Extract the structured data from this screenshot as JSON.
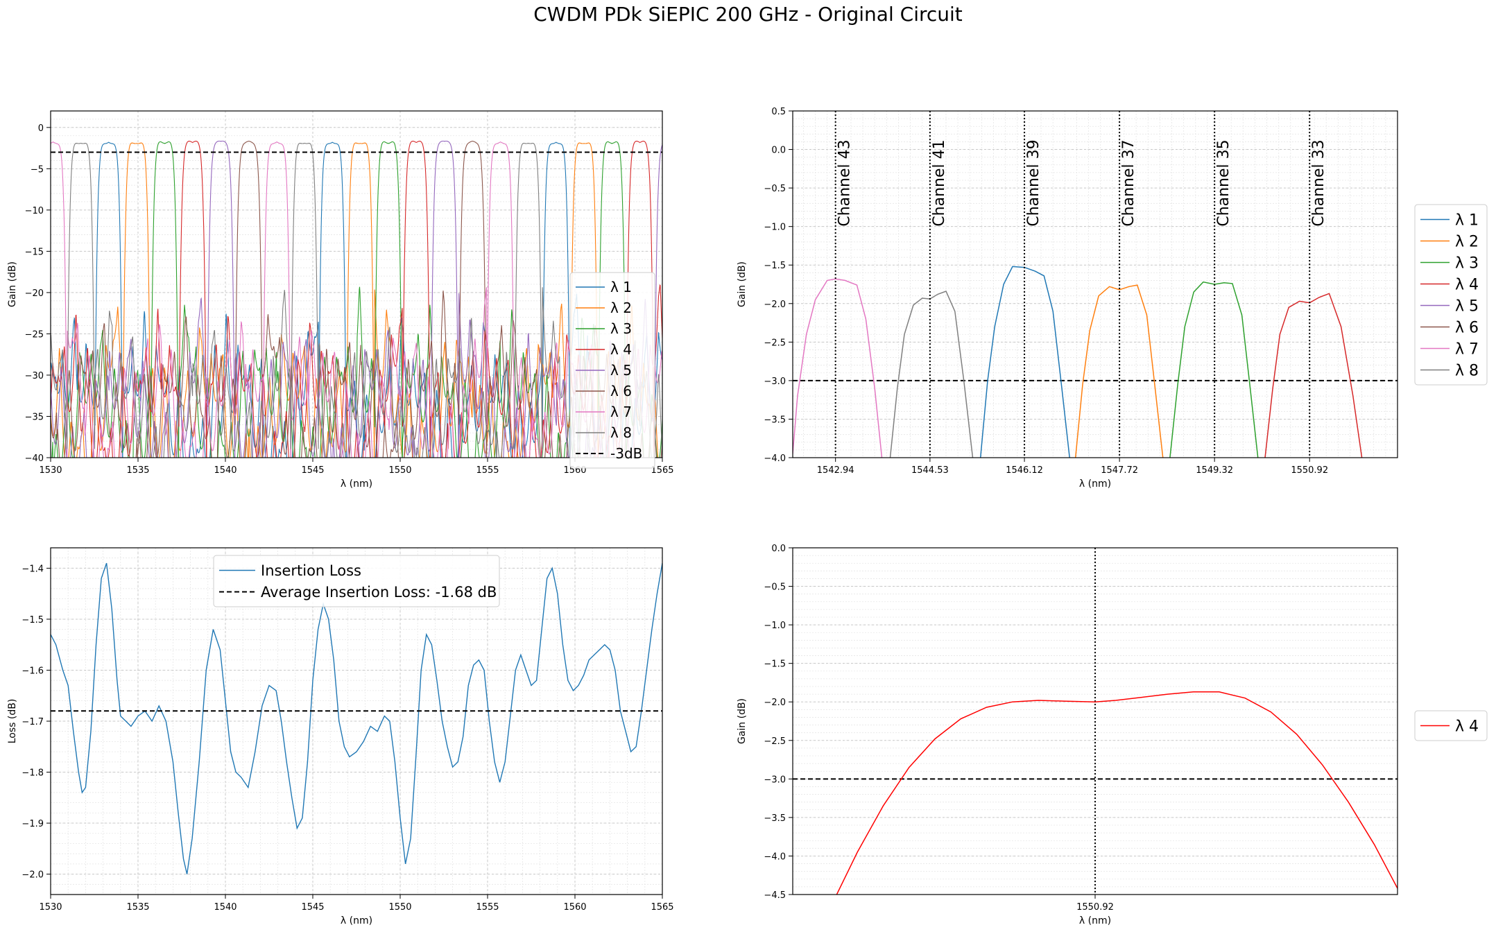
{
  "figure": {
    "title": "CWDM PDk SiEPIC 200 GHz - Original Circuit"
  },
  "colors": {
    "lam1": "#1f77b4",
    "lam2": "#ff7f0e",
    "lam3": "#2ca02c",
    "lam4": "#d62728",
    "lam5": "#9467bd",
    "lam6": "#8c564b",
    "lam7": "#e377c2",
    "lam8": "#7f7f7f",
    "lam4_zoom": "#ff0000"
  },
  "chart_data": [
    {
      "id": "spectrum",
      "type": "line",
      "xlabel": "λ (nm)",
      "ylabel": "Gain (dB)",
      "xlim": [
        1530,
        1565
      ],
      "ylim": [
        -40,
        2
      ],
      "xticks": [
        1530,
        1535,
        1540,
        1545,
        1550,
        1555,
        1560,
        1565
      ],
      "yticks": [
        0,
        -5,
        -10,
        -15,
        -20,
        -25,
        -30,
        -35,
        -40
      ],
      "grid": true,
      "legend_position": "lower-right",
      "reference_line": {
        "y": -3,
        "label": "-3dB"
      },
      "passband": {
        "peak": -1.8,
        "halfwidth_nm": 0.8,
        "fwhm_region": 0.6
      },
      "channel_period_nm": 1.6,
      "series": [
        {
          "name": "λ 1",
          "color_key": "lam1",
          "first_center": 1546.12
        },
        {
          "name": "λ 2",
          "color_key": "lam2",
          "first_center": 1547.72
        },
        {
          "name": "λ 3",
          "color_key": "lam3",
          "first_center": 1549.32
        },
        {
          "name": "λ 4",
          "color_key": "lam4",
          "first_center": 1550.92
        },
        {
          "name": "λ 5",
          "color_key": "lam5",
          "first_center": 1539.74
        },
        {
          "name": "λ 6",
          "color_key": "lam6",
          "first_center": 1541.34
        },
        {
          "name": "λ 7",
          "color_key": "lam7",
          "first_center": 1542.94
        },
        {
          "name": "λ 8",
          "color_key": "lam8",
          "first_center": 1544.53
        }
      ]
    },
    {
      "id": "channels",
      "type": "line",
      "xlabel": "λ (nm)",
      "ylabel": "Gain (dB)",
      "xlim": [
        1542.22,
        1552.4
      ],
      "ylim": [
        -4.0,
        0.5
      ],
      "xticks": [
        1542.94,
        1544.53,
        1546.12,
        1547.72,
        1549.32,
        1550.92
      ],
      "xticklabels": [
        "1542.94",
        "1544.53",
        "1546.12",
        "1547.72",
        "1549.32",
        "1550.92"
      ],
      "yticks": [
        0.5,
        0.0,
        -0.5,
        -1.0,
        -1.5,
        -2.0,
        -2.5,
        -3.0,
        -3.5,
        -4.0
      ],
      "yticklabels": [
        "0.5",
        "0.0",
        "−0.5",
        "−1.0",
        "−1.5",
        "−2.0",
        "−2.5",
        "−3.0",
        "−3.5",
        "−4.0"
      ],
      "grid": true,
      "legend_position": "outside-right",
      "reference_line": {
        "y": -3
      },
      "channel_markers": [
        {
          "x": 1542.94,
          "label": "Channel 43"
        },
        {
          "x": 1544.53,
          "label": "Channel 41"
        },
        {
          "x": 1546.12,
          "label": "Channel 39"
        },
        {
          "x": 1547.72,
          "label": "Channel 37"
        },
        {
          "x": 1549.32,
          "label": "Channel 35"
        },
        {
          "x": 1550.92,
          "label": "Channel 33"
        }
      ],
      "bands": [
        {
          "series": "λ 7",
          "color_key": "lam7",
          "x": [
            1542.22,
            1542.3,
            1542.45,
            1542.6,
            1542.8,
            1542.94,
            1543.1,
            1543.3,
            1543.45,
            1543.6,
            1543.72
          ],
          "y": [
            -3.95,
            -3.2,
            -2.4,
            -1.95,
            -1.7,
            -1.68,
            -1.7,
            -1.76,
            -2.2,
            -3.1,
            -4.0
          ]
        },
        {
          "series": "λ 8",
          "color_key": "lam8",
          "x": [
            1543.86,
            1543.98,
            1544.1,
            1544.25,
            1544.4,
            1544.53,
            1544.66,
            1544.8,
            1544.95,
            1545.1,
            1545.25
          ],
          "y": [
            -4.0,
            -3.1,
            -2.4,
            -2.02,
            -1.93,
            -1.94,
            -1.88,
            -1.84,
            -2.1,
            -3.0,
            -4.0
          ]
        },
        {
          "series": "λ 1",
          "color_key": "lam1",
          "x": [
            1545.38,
            1545.5,
            1545.62,
            1545.77,
            1545.92,
            1546.12,
            1546.3,
            1546.45,
            1546.6,
            1546.75,
            1546.88
          ],
          "y": [
            -4.0,
            -3.0,
            -2.3,
            -1.75,
            -1.52,
            -1.53,
            -1.58,
            -1.64,
            -2.1,
            -3.1,
            -4.0
          ]
        },
        {
          "series": "λ 2",
          "color_key": "lam2",
          "x": [
            1546.98,
            1547.1,
            1547.22,
            1547.37,
            1547.55,
            1547.72,
            1547.88,
            1548.02,
            1548.18,
            1548.32,
            1548.45
          ],
          "y": [
            -4.0,
            -3.05,
            -2.35,
            -1.9,
            -1.78,
            -1.82,
            -1.78,
            -1.76,
            -2.15,
            -3.1,
            -4.0
          ]
        },
        {
          "series": "λ 3",
          "color_key": "lam3",
          "x": [
            1548.57,
            1548.7,
            1548.82,
            1548.97,
            1549.13,
            1549.32,
            1549.48,
            1549.62,
            1549.78,
            1549.92,
            1550.05
          ],
          "y": [
            -4.0,
            -3.05,
            -2.3,
            -1.85,
            -1.72,
            -1.75,
            -1.73,
            -1.74,
            -2.15,
            -3.1,
            -4.0
          ]
        },
        {
          "series": "λ 4",
          "color_key": "lam4",
          "x": [
            1550.17,
            1550.3,
            1550.42,
            1550.57,
            1550.75,
            1550.92,
            1551.08,
            1551.25,
            1551.45,
            1551.65,
            1551.8
          ],
          "y": [
            -4.0,
            -3.1,
            -2.4,
            -2.05,
            -1.97,
            -1.99,
            -1.92,
            -1.87,
            -2.3,
            -3.2,
            -4.0
          ]
        }
      ],
      "series": [
        {
          "name": "λ 1",
          "color_key": "lam1"
        },
        {
          "name": "λ 2",
          "color_key": "lam2"
        },
        {
          "name": "λ 3",
          "color_key": "lam3"
        },
        {
          "name": "λ 4",
          "color_key": "lam4"
        },
        {
          "name": "λ 5",
          "color_key": "lam5"
        },
        {
          "name": "λ 6",
          "color_key": "lam6"
        },
        {
          "name": "λ 7",
          "color_key": "lam7"
        },
        {
          "name": "λ 8",
          "color_key": "lam8"
        }
      ]
    },
    {
      "id": "insertion-loss",
      "type": "line",
      "xlabel": "λ (nm)",
      "ylabel": "Loss (dB)",
      "xlim": [
        1530,
        1565
      ],
      "ylim": [
        -2.04,
        -1.36
      ],
      "xticks": [
        1530,
        1535,
        1540,
        1545,
        1550,
        1555,
        1560,
        1565
      ],
      "yticks": [
        -1.4,
        -1.5,
        -1.6,
        -1.7,
        -1.8,
        -1.9,
        -2.0
      ],
      "yticklabels": [
        "−1.4",
        "−1.5",
        "−1.6",
        "−1.7",
        "−1.8",
        "−1.9",
        "−2.0"
      ],
      "grid": true,
      "legend_position": "upper-center",
      "reference_line": {
        "y": -1.68,
        "label": "Average Insertion Loss: -1.68 dB"
      },
      "series": [
        {
          "name": "Insertion Loss",
          "color_key": "lam1",
          "x": [
            1530,
            1530.3,
            1530.7,
            1531,
            1531.3,
            1531.6,
            1531.8,
            1532.0,
            1532.3,
            1532.6,
            1532.9,
            1533.2,
            1533.5,
            1533.8,
            1534.0,
            1534.3,
            1534.6,
            1535.0,
            1535.4,
            1535.8,
            1536.2,
            1536.6,
            1537.0,
            1537.3,
            1537.6,
            1537.8,
            1538.1,
            1538.5,
            1538.9,
            1539.3,
            1539.7,
            1540.0,
            1540.3,
            1540.6,
            1540.9,
            1541.3,
            1541.7,
            1542.1,
            1542.5,
            1542.9,
            1543.2,
            1543.5,
            1543.8,
            1544.1,
            1544.4,
            1544.7,
            1545.0,
            1545.3,
            1545.6,
            1545.9,
            1546.2,
            1546.5,
            1546.8,
            1547.1,
            1547.5,
            1547.9,
            1548.3,
            1548.7,
            1549.1,
            1549.4,
            1549.7,
            1550.0,
            1550.3,
            1550.6,
            1550.9,
            1551.2,
            1551.5,
            1551.8,
            1552.1,
            1552.4,
            1552.7,
            1553.0,
            1553.3,
            1553.6,
            1553.9,
            1554.2,
            1554.5,
            1554.8,
            1555.1,
            1555.4,
            1555.7,
            1556.0,
            1556.3,
            1556.6,
            1556.9,
            1557.2,
            1557.5,
            1557.8,
            1558.1,
            1558.4,
            1558.7,
            1559.0,
            1559.3,
            1559.6,
            1559.9,
            1560.2,
            1560.5,
            1560.8,
            1561.1,
            1561.4,
            1561.7,
            1562.0,
            1562.3,
            1562.6,
            1562.9,
            1563.2,
            1563.5,
            1563.8,
            1564.1,
            1564.4,
            1564.7,
            1565.0
          ],
          "y": [
            -1.53,
            -1.55,
            -1.6,
            -1.63,
            -1.72,
            -1.8,
            -1.84,
            -1.83,
            -1.72,
            -1.55,
            -1.42,
            -1.39,
            -1.48,
            -1.62,
            -1.69,
            -1.7,
            -1.71,
            -1.69,
            -1.68,
            -1.7,
            -1.67,
            -1.7,
            -1.78,
            -1.88,
            -1.97,
            -2.0,
            -1.93,
            -1.78,
            -1.6,
            -1.52,
            -1.56,
            -1.66,
            -1.76,
            -1.8,
            -1.81,
            -1.83,
            -1.76,
            -1.67,
            -1.63,
            -1.64,
            -1.7,
            -1.78,
            -1.85,
            -1.91,
            -1.89,
            -1.78,
            -1.62,
            -1.52,
            -1.47,
            -1.5,
            -1.58,
            -1.7,
            -1.75,
            -1.77,
            -1.76,
            -1.74,
            -1.71,
            -1.72,
            -1.69,
            -1.7,
            -1.78,
            -1.89,
            -1.98,
            -1.93,
            -1.77,
            -1.6,
            -1.53,
            -1.55,
            -1.62,
            -1.7,
            -1.75,
            -1.79,
            -1.78,
            -1.73,
            -1.63,
            -1.59,
            -1.58,
            -1.6,
            -1.7,
            -1.78,
            -1.82,
            -1.78,
            -1.69,
            -1.6,
            -1.57,
            -1.6,
            -1.63,
            -1.62,
            -1.52,
            -1.42,
            -1.4,
            -1.45,
            -1.55,
            -1.62,
            -1.64,
            -1.63,
            -1.61,
            -1.58,
            -1.57,
            -1.56,
            -1.55,
            -1.56,
            -1.6,
            -1.68,
            -1.72,
            -1.76,
            -1.75,
            -1.68,
            -1.6,
            -1.52,
            -1.45,
            -1.39
          ]
        }
      ]
    },
    {
      "id": "lambda4-zoom",
      "type": "line",
      "xlabel": "λ (nm)",
      "ylabel": "Gain (dB)",
      "xlim": [
        1549.75,
        1552.09
      ],
      "ylim": [
        -4.5,
        0.0
      ],
      "xticks": [
        1550.92
      ],
      "xticklabels": [
        "1550.92"
      ],
      "yticks": [
        0.0,
        -0.5,
        -1.0,
        -1.5,
        -2.0,
        -2.5,
        -3.0,
        -3.5,
        -4.0,
        -4.5
      ],
      "yticklabels": [
        "0.0",
        "−0.5",
        "−1.0",
        "−1.5",
        "−2.0",
        "−2.5",
        "−3.0",
        "−3.5",
        "−4.0",
        "−4.5"
      ],
      "grid": true,
      "legend_position": "outside-right",
      "reference_line": {
        "y": -3
      },
      "channel_markers": [
        {
          "x": 1550.92
        }
      ],
      "series": [
        {
          "name": "λ 4",
          "color_key": "lam4_zoom",
          "x": [
            1549.92,
            1550.0,
            1550.1,
            1550.2,
            1550.3,
            1550.4,
            1550.5,
            1550.6,
            1550.7,
            1550.8,
            1550.92,
            1551.0,
            1551.1,
            1551.2,
            1551.3,
            1551.4,
            1551.5,
            1551.6,
            1551.7,
            1551.8,
            1551.9,
            1552.0,
            1552.09
          ],
          "y": [
            -4.5,
            -3.95,
            -3.35,
            -2.85,
            -2.48,
            -2.22,
            -2.07,
            -2.0,
            -1.98,
            -1.99,
            -2.0,
            -1.98,
            -1.94,
            -1.9,
            -1.87,
            -1.87,
            -1.95,
            -2.13,
            -2.42,
            -2.82,
            -3.3,
            -3.85,
            -4.42
          ]
        }
      ]
    }
  ]
}
